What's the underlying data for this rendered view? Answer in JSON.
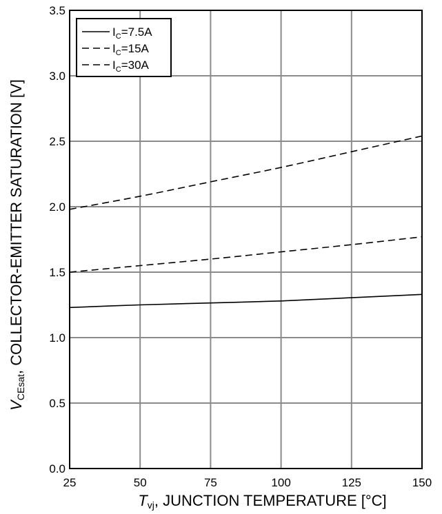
{
  "chart_data": {
    "type": "line",
    "title": "",
    "xlabel": {
      "symbol": "T",
      "subscript": "vj",
      "rest": ", JUNCTION TEMPERATURE [°C]"
    },
    "ylabel": {
      "symbol": "V",
      "subscript": "CEsat",
      "rest": ", COLLECTOR-EMITTER SATURATION [V]"
    },
    "xlim": [
      25,
      150
    ],
    "ylim": [
      0.0,
      3.5
    ],
    "xticks": [
      25,
      50,
      75,
      100,
      125,
      150
    ],
    "yticks": [
      0.0,
      0.5,
      1.0,
      1.5,
      2.0,
      2.5,
      3.0,
      3.5
    ],
    "xtick_labels": [
      "25",
      "50",
      "75",
      "100",
      "125",
      "150"
    ],
    "ytick_labels": [
      "0.0",
      "0.5",
      "1.0",
      "1.5",
      "2.0",
      "2.5",
      "3.0",
      "3.5"
    ],
    "grid": true,
    "legend_position": "top-left",
    "series": [
      {
        "name": "IC=7.5A",
        "legend_main": "I",
        "legend_sub": "C",
        "legend_rest": "=7.5A",
        "style": "solid",
        "x": [
          25,
          50,
          75,
          100,
          125,
          150
        ],
        "y": [
          1.23,
          1.25,
          1.265,
          1.28,
          1.305,
          1.33
        ]
      },
      {
        "name": "IC=15A",
        "legend_main": "I",
        "legend_sub": "C",
        "legend_rest": "=15A",
        "style": "dashed",
        "x": [
          25,
          50,
          75,
          100,
          125,
          150
        ],
        "y": [
          1.5,
          1.55,
          1.6,
          1.655,
          1.71,
          1.77
        ]
      },
      {
        "name": "IC=30A",
        "legend_main": "I",
        "legend_sub": "C",
        "legend_rest": "=30A",
        "style": "dashed",
        "x": [
          25,
          50,
          75,
          100,
          125,
          150
        ],
        "y": [
          1.98,
          2.08,
          2.19,
          2.3,
          2.42,
          2.54
        ]
      }
    ]
  }
}
